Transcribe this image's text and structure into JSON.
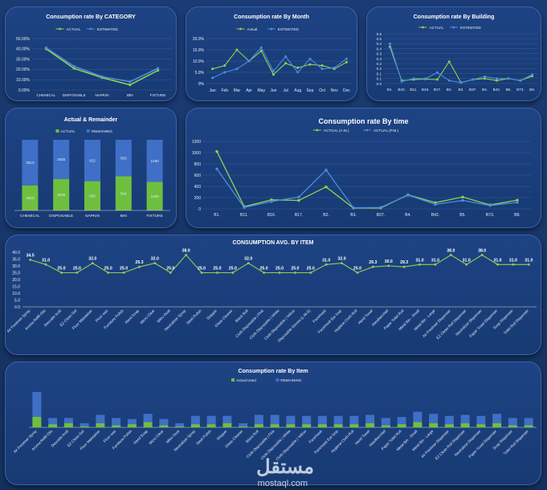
{
  "colors": {
    "actual": "#8fd14f",
    "estimated": "#4a8ee0",
    "actual_bar": "#6fbf3f",
    "remaining_bar": "#3f6fc7",
    "grid": "#3a5a94",
    "text": "#e6ecf5"
  },
  "chart_data": [
    {
      "id": "category",
      "type": "line",
      "title": "Consumption rate By CATEGORY",
      "legend": [
        "ACTUAL",
        "ESTIMATED"
      ],
      "categories": [
        "CHEMICAL",
        "DISPOSABLE",
        "NAPKIN",
        "BIN",
        "FIXTURE"
      ],
      "series": [
        {
          "name": "ACTUAL",
          "values": [
            0.4,
            0.21,
            0.12,
            0.05,
            0.19
          ]
        },
        {
          "name": "ESTIMATED",
          "values": [
            0.41,
            0.23,
            0.13,
            0.08,
            0.21
          ]
        }
      ],
      "ylim": [
        0,
        0.5
      ],
      "yticks": [
        "0.00%",
        "10.00%",
        "20.00%",
        "30.00%",
        "40.00%",
        "50.00%"
      ]
    },
    {
      "id": "month",
      "type": "line",
      "title": "Consumption rate By Month",
      "legend": [
        "Actual",
        "ESTIMATED"
      ],
      "categories": [
        "Jan",
        "Feb",
        "Mar",
        "Apr",
        "May",
        "Jun",
        "Jul",
        "Aug",
        "Sep",
        "Oct",
        "Nov",
        "Dec"
      ],
      "series": [
        {
          "name": "Actual",
          "values": [
            0.065,
            0.08,
            0.15,
            0.1,
            0.145,
            0.04,
            0.09,
            0.07,
            0.085,
            0.08,
            0.065,
            0.095
          ]
        },
        {
          "name": "ESTIMATED",
          "values": [
            0.025,
            0.05,
            0.065,
            0.1,
            0.16,
            0.055,
            0.12,
            0.05,
            0.11,
            0.065,
            0.07,
            0.11
          ]
        }
      ],
      "ylim": [
        0,
        0.2
      ],
      "yticks": [
        "0%",
        "5.0%",
        "10.0%",
        "15.0%",
        "20.0%"
      ]
    },
    {
      "id": "building",
      "type": "line",
      "title": "Consumption rate By Building",
      "legend": [
        "ACTUAL",
        "ESTIMATED"
      ],
      "categories": [
        "B1.",
        "B10.",
        "B11.",
        "B16.",
        "B17.",
        "B2.",
        "B3.",
        "B37.",
        "B4.",
        "B42.",
        "B5.",
        "B73.",
        "B8."
      ],
      "series": [
        {
          "name": "ACTUAL",
          "values": [
            0.37,
            0.03,
            0.04,
            0.045,
            0.04,
            0.22,
            0.01,
            0.04,
            0.05,
            0.03,
            0.05,
            0.03,
            0.075
          ]
        },
        {
          "name": "ESTIMATED",
          "values": [
            0.4,
            0.02,
            0.05,
            0.05,
            0.11,
            0.03,
            0.01,
            0.04,
            0.07,
            0.05,
            0.05,
            0.03,
            0.09
          ]
        }
      ],
      "ylim": [
        0,
        0.5
      ],
      "yticks": [
        "0.0",
        "0.1",
        "0.1",
        "0.2",
        "0.2",
        "0.3",
        "0.3",
        "0.4",
        "0.4",
        "0.5",
        "0.5"
      ]
    },
    {
      "id": "remainder",
      "type": "bar",
      "title": "Actual & Remainder",
      "legend": [
        "ACTUAL",
        "REMAINING"
      ],
      "categories": [
        "CHEMICAL",
        "DISPOSABLE",
        "NAPKIN",
        "BIN",
        "FIXTURE"
      ],
      "series": [
        {
          "name": "ACTUAL",
          "values": [
            1915,
            1635,
            580,
            544,
            1000
          ]
        },
        {
          "name": "REMAINING",
          "values": [
            3510,
            2055,
            822,
            583,
            1480
          ]
        }
      ],
      "value_labels": [
        [
          "1915",
          "1635",
          "580",
          "544",
          "1000"
        ],
        [
          "3510",
          "2055",
          "822",
          "583",
          "1480"
        ]
      ]
    },
    {
      "id": "time",
      "type": "line",
      "title": "Consumption rate By time",
      "legend": [
        "ACTUAL (A.M.)",
        "ACTUAL (P.M.)"
      ],
      "categories": [
        "B1.",
        "B11.",
        "B16.",
        "B17.",
        "B2.",
        "B3.",
        "B37.",
        "B4.",
        "B42.",
        "B5.",
        "B73.",
        "B8."
      ],
      "series": [
        {
          "name": "ACTUAL (A.M.)",
          "values": [
            1020,
            40,
            160,
            150,
            390,
            15,
            15,
            250,
            110,
            210,
            70,
            155
          ]
        },
        {
          "name": "ACTUAL (P.M.)",
          "values": [
            710,
            25,
            130,
            210,
            690,
            20,
            25,
            245,
            80,
            150,
            60,
            115
          ]
        }
      ],
      "ylim": [
        0,
        1200
      ],
      "yticks": [
        "0",
        "200",
        "400",
        "600",
        "800",
        "1000",
        "1200"
      ]
    },
    {
      "id": "avg",
      "type": "line",
      "title": "CONSUMPTION AVG. BY ITEM",
      "categories": [
        "Air Freshner Spray",
        "Aroma Refill Oils",
        "Descaler Acid",
        "EZ Clean Gel",
        "Floor Maintainer",
        "Floor wax",
        "Furniture Polish",
        "Hand Soap",
        "Micro Clear",
        "Mitro Oust",
        "Neutralizer Spray",
        "Steel Polish",
        "Stripper",
        "Glass Cleaner",
        "Black Roll",
        "Cloth Disposable | Pink",
        "Cloth Disposable | White",
        "Cloth Disposable | Yellow",
        "Disposable Gloves (L-M-S)",
        "Facemask",
        "Facemask Ear loop",
        "Hygiene Cloth Roll",
        "Hand Towel",
        "Handkerchief",
        "Paper Toilet Roll",
        "Metal Bin - Small",
        "Metal Bin - Large",
        "Air Freshner Dispenser",
        "EZ Clean Roll Dispenser",
        "Neutralizer Dispenser",
        "Paper Towel Dispenser",
        "Soap Dispenser",
        "Toilet Roll Dispenser"
      ],
      "values": [
        34.5,
        31.0,
        25.0,
        25.0,
        32.0,
        25.0,
        25.0,
        29.3,
        32.0,
        25.0,
        38.0,
        25.0,
        25.0,
        25.0,
        32.0,
        25.0,
        25.0,
        25.0,
        25.0,
        31.0,
        32.0,
        25.0,
        29.3,
        30.0,
        29.3,
        31.0,
        31.0,
        38.0,
        31.0,
        38.0,
        31.0,
        31.0,
        31.0
      ],
      "value_labels": [
        "34.5",
        "31.0",
        "25.0",
        "25.0",
        "32.0",
        "25.0",
        "25.0",
        "29.3",
        "32.0",
        "25.0",
        "38.0",
        "25.0",
        "25.0",
        "25.0",
        "32.0",
        "25.0",
        "25.0",
        "25.0",
        "25.0",
        "31.0",
        "32.0",
        "25.0",
        "29.3",
        "30.0",
        "29.3",
        "31.0",
        "31.0",
        "38.0",
        "31.0",
        "38.0",
        "31.0",
        "31.0",
        "31.0"
      ],
      "ylim": [
        0,
        40
      ],
      "yticks": [
        "0.0",
        "5.0",
        "10.0",
        "15.0",
        "20.0",
        "25.0",
        "30.0",
        "35.0",
        "40.0"
      ]
    },
    {
      "id": "item",
      "type": "bar",
      "title": "Consumption rate By Item",
      "legend": [
        "Actual Used",
        "REMAINING"
      ],
      "categories": [
        "Air Freshner Spray",
        "Aroma Refill Oils",
        "Descaler Acid",
        "EZ Clean Gel",
        "Floor Maintainer",
        "Floor wax",
        "Furniture Polish",
        "Hand Soap",
        "Micro Clear",
        "Mitro Oust",
        "Neutralizer Spray",
        "Steel Polish",
        "Stripper",
        "Glass Cleaner",
        "Black Roll",
        "Cloth Disposable | Pink",
        "Cloth Disposable | White",
        "Cloth Disposable | Yellow",
        "Facemask",
        "Facemask Ear loop",
        "Hygiene Cloth Roll",
        "Hand Towel",
        "Handkerchief",
        "Paper Toilet Roll",
        "Metal Bin - Small",
        "Metal Bin - Large",
        "Air Freshner Dispenser",
        "EZ Clean Roll Dispenser",
        "Neutralizer Dispenser",
        "Paper Towel Dispenser",
        "Soap Dispenser",
        "Toilet Roll Dispenser"
      ],
      "series": [
        {
          "name": "Actual Used",
          "values": [
            10,
            3,
            4,
            1,
            4,
            2,
            3,
            5,
            2,
            1,
            3,
            3,
            4,
            1,
            3,
            3,
            3,
            3,
            3,
            3,
            3,
            4,
            2,
            3,
            5,
            4,
            3,
            4,
            3,
            4,
            2,
            2
          ]
        },
        {
          "name": "REMAINING",
          "values": [
            24,
            6,
            5,
            3,
            8,
            7,
            5,
            8,
            6,
            3,
            8,
            8,
            7,
            3,
            9,
            9,
            8,
            8,
            8,
            8,
            8,
            8,
            7,
            7,
            10,
            9,
            8,
            8,
            8,
            9,
            7,
            7
          ]
        }
      ]
    }
  ],
  "watermark": {
    "brand": "مستقل",
    "site": "mostaql.com"
  }
}
